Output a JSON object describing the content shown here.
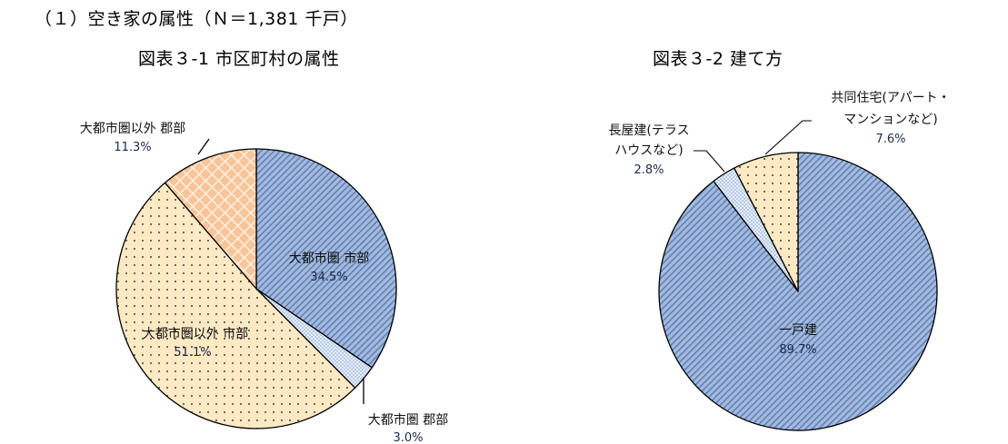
{
  "section_title": "（１）空き家の属性（Ｎ＝1,381 千戸）",
  "chart_data": [
    {
      "type": "pie",
      "title": "図表３-1 市区町村の属性",
      "start_angle_deg": 0,
      "direction": "clockwise",
      "slices": [
        {
          "label": "大都市圏 市部",
          "value": 34.5,
          "pct_text": "34.5%",
          "color": "#9dbbea",
          "pattern": "diagonal-stripes"
        },
        {
          "label": "大都市圏 郡部",
          "value": 3.0,
          "pct_text": "3.0%",
          "color": "#dce8f7",
          "pattern": "fine-check"
        },
        {
          "label": "大都市圏以外 市部",
          "value": 51.1,
          "pct_text": "51.1%",
          "color": "#fde9c4",
          "pattern": "dots"
        },
        {
          "label": "大都市圏以外 郡部",
          "value": 11.3,
          "pct_text": "11.3%",
          "color": "#f9c498",
          "pattern": "diamond-lattice"
        }
      ]
    },
    {
      "type": "pie",
      "title": "図表３-2 建て方",
      "start_angle_deg": 0,
      "direction": "clockwise",
      "slices": [
        {
          "label": "一戸建",
          "value": 89.7,
          "pct_text": "89.7%",
          "color": "#9dbbea",
          "pattern": "diagonal-stripes"
        },
        {
          "label_lines": [
            "長屋建(テラス",
            "ハウスなど)"
          ],
          "label": "長屋建(テラスハウスなど)",
          "value": 2.8,
          "pct_text": "2.8%",
          "color": "#dce8f7",
          "pattern": "fine-check"
        },
        {
          "label_lines": [
            "共同住宅(アパート・",
            "マンションなど)"
          ],
          "label": "共同住宅(アパート・マンションなど)",
          "value": 7.6,
          "pct_text": "7.6%",
          "color": "#fde9c4",
          "pattern": "dots"
        }
      ]
    }
  ]
}
